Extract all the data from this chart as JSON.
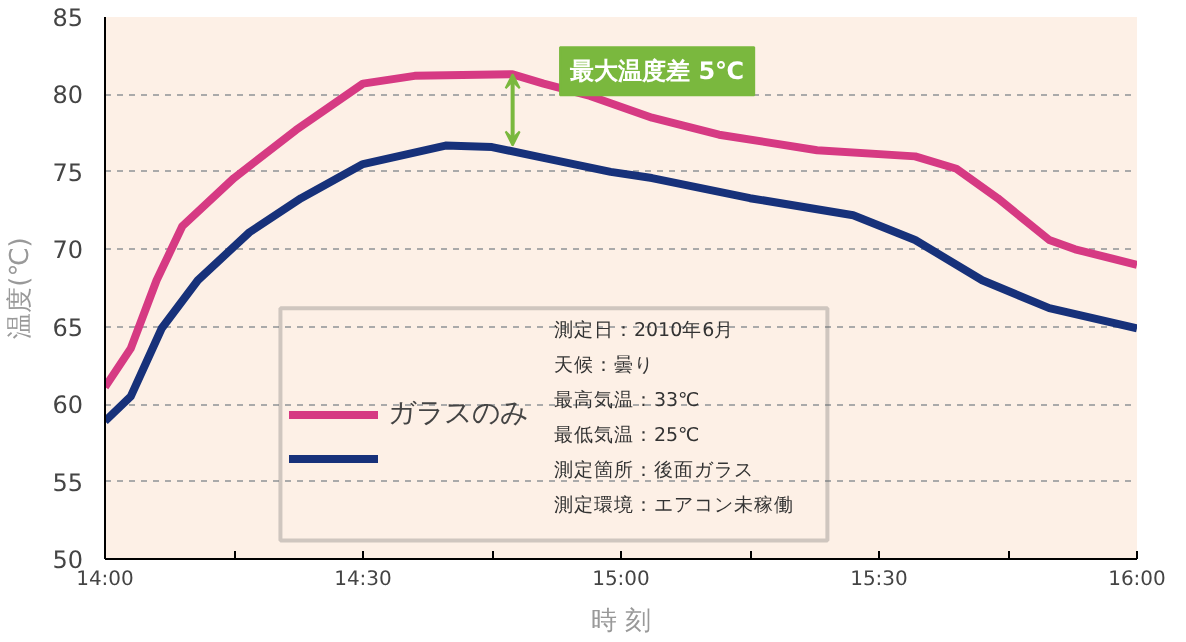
{
  "chart_data": {
    "type": "line",
    "xlabel": "時 刻",
    "ylabel": "温度(℃)",
    "xlim": [
      14,
      16
    ],
    "ylim": [
      50,
      85
    ],
    "xticks": [
      {
        "value": 14,
        "label": "14:00"
      },
      {
        "value": 14.25,
        "label": null
      },
      {
        "value": 14.5,
        "label": "14:30"
      },
      {
        "value": 14.75,
        "label": null
      },
      {
        "value": 15,
        "label": "15:00"
      },
      {
        "value": 15.25,
        "label": null
      },
      {
        "value": 15.5,
        "label": "15:30"
      },
      {
        "value": 15.75,
        "label": null
      },
      {
        "value": 16,
        "label": "16:00"
      }
    ],
    "yticks": [
      50,
      55,
      60,
      65,
      70,
      75,
      80,
      85
    ],
    "grid": "y",
    "legend": "bottom left",
    "line_style": "solid",
    "marker": "none",
    "series": [
      {
        "name": "ガラスのみ",
        "color": "#d63a83",
        "x": [
          14.0,
          14.05,
          14.1,
          14.15,
          14.25,
          14.37,
          14.5,
          14.6,
          14.79,
          14.85,
          14.94,
          15.06,
          15.19,
          15.38,
          15.57,
          15.65,
          15.73,
          15.83,
          15.88,
          16.0
        ],
        "values": [
          61.1,
          63.6,
          68.0,
          71.5,
          74.6,
          77.7,
          80.7,
          81.2,
          81.3,
          80.7,
          79.9,
          78.5,
          77.4,
          76.4,
          76.0,
          75.2,
          73.3,
          70.6,
          70.0,
          69.0
        ]
      },
      {
        "color": "#17317a",
        "x": [
          14.0,
          14.05,
          14.11,
          14.18,
          14.28,
          14.38,
          14.5,
          14.66,
          14.75,
          14.85,
          14.98,
          15.06,
          15.25,
          15.45,
          15.57,
          15.7,
          15.83,
          16.0
        ],
        "values": [
          58.9,
          60.5,
          64.9,
          68.0,
          71.1,
          73.3,
          75.5,
          76.7,
          76.6,
          75.9,
          75.0,
          74.6,
          73.3,
          72.2,
          70.6,
          68.0,
          66.2,
          64.9
        ]
      }
    ],
    "annotations": [
      "最大温度差 5℃",
      "測定日：2010年6月",
      "天候：曇り",
      "最高気温：33℃",
      "最低気温：25℃",
      "測定箇所：後面ガラス",
      "測定環境：エアコン未稼働"
    ]
  }
}
